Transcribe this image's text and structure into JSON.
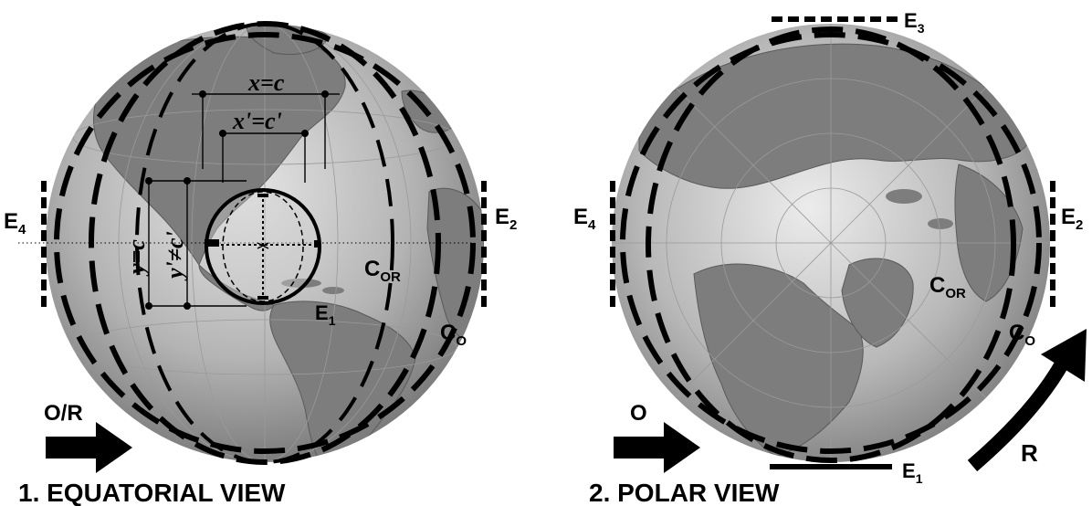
{
  "panel_left": {
    "caption": "1. EQUATORIAL VIEW",
    "arrow_label": "O/R",
    "e4_label": "E",
    "e4_sub": "4",
    "e2_label": "E",
    "e2_sub": "2",
    "e1_label": "E",
    "e1_sub": "1",
    "cor_label": "C",
    "cor_sub": "OR",
    "co_label": "C",
    "co_sub": "O",
    "x_eq": "x=c",
    "xprime_eq": "x'=c'",
    "y_eq": "y=c",
    "yprime_eq": "y'≠c'"
  },
  "panel_right": {
    "caption": "2. POLAR VIEW",
    "arrow_label": "O",
    "rotation_label": "R",
    "e3_label": "E",
    "e3_sub": "3",
    "e4_label": "E",
    "e4_sub": "4",
    "e2_label": "E",
    "e2_sub": "2",
    "e1_label": "E",
    "e1_sub": "1",
    "cor_label": "C",
    "cor_sub": "OR",
    "co_label": "C",
    "co_sub": "O"
  },
  "colors": {
    "ocean_light": "#d9d9d9",
    "ocean_dark": "#6e6e6e",
    "land": "#808080",
    "ink": "#000000"
  }
}
